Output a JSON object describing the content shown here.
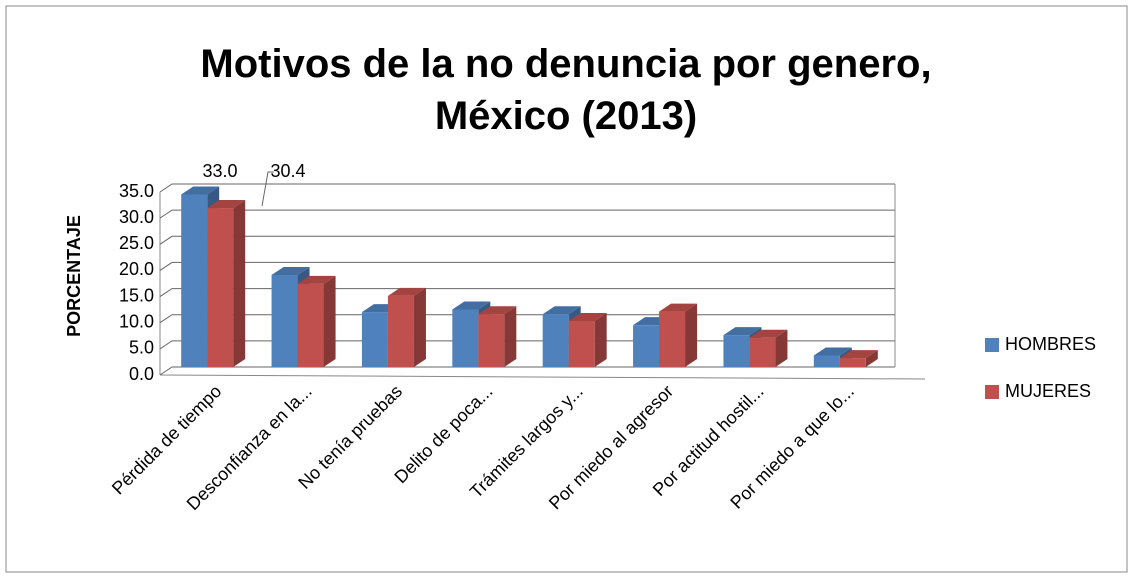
{
  "chart_data": {
    "type": "bar3d",
    "title": "Motivos de la no denuncia por genero, México (2013)",
    "y_label": "PORCENTAJE",
    "categories": [
      "Pérdida de tiempo",
      "Desconfianza en la...",
      "No tenía pruebas",
      "Delito de poca...",
      "Trámites largos y...",
      "Por miedo al agresor",
      "Por actitud hostil...",
      "Por miedo a que lo..."
    ],
    "series": [
      {
        "name": "HOMBRES",
        "color": "#4f81bd",
        "values": [
          33.0,
          17.6,
          10.5,
          11.0,
          10.1,
          8.0,
          6.1,
          2.2
        ],
        "value_labels": [
          "33.0",
          null,
          null,
          null,
          null,
          null,
          null,
          null
        ]
      },
      {
        "name": "MUJERES",
        "color": "#c0504d",
        "values": [
          30.4,
          15.9,
          13.6,
          10.1,
          8.8,
          10.6,
          5.6,
          1.7
        ],
        "value_labels": [
          "30.4",
          null,
          null,
          null,
          null,
          null,
          null,
          null
        ]
      }
    ],
    "ylim": [
      0,
      35
    ],
    "yticks": [
      {
        "value": 0,
        "label": "0.0"
      },
      {
        "value": 5,
        "label": "5.0"
      },
      {
        "value": 10,
        "label": "10.0"
      },
      {
        "value": 15,
        "label": "15.0"
      },
      {
        "value": 20,
        "label": "20.0"
      },
      {
        "value": 25,
        "label": "25.0"
      },
      {
        "value": 30,
        "label": "30.0"
      },
      {
        "value": 35,
        "label": "35.0"
      }
    ],
    "grid": true,
    "legend": "right"
  }
}
